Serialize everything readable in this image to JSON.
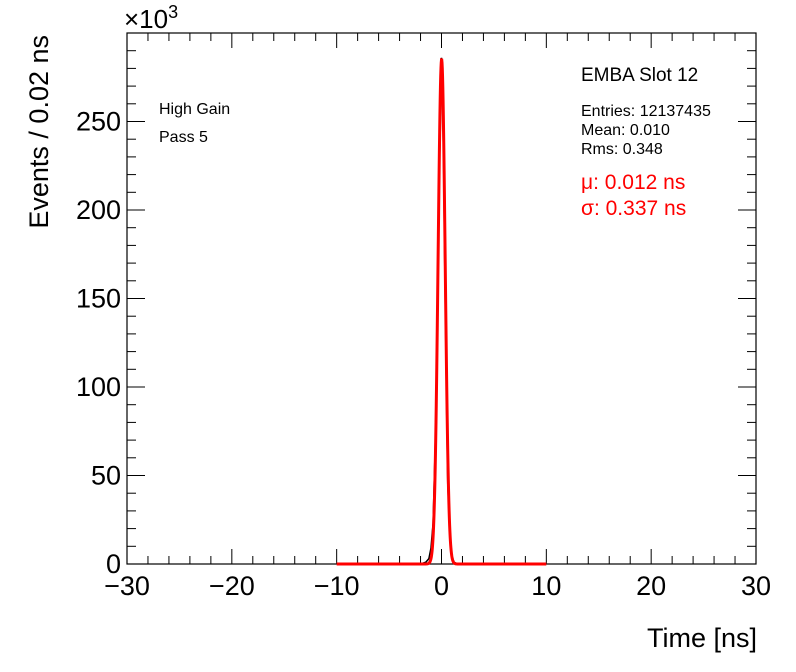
{
  "chart_data": {
    "type": "line",
    "title": "EMBA Slot 12",
    "xlabel": "Time [ns]",
    "ylabel": "Events / 0.02 ns",
    "y_multiplier": "×10",
    "y_multiplier_exp": "3",
    "xlim": [
      -30,
      30
    ],
    "ylim": [
      0,
      300
    ],
    "x_ticks": [
      -30,
      -20,
      -10,
      0,
      10,
      20,
      30
    ],
    "x_tick_labels": [
      "−30",
      "−20",
      "−10",
      "0",
      "10",
      "20",
      "30"
    ],
    "y_ticks": [
      0,
      50,
      100,
      150,
      200,
      250
    ],
    "y_tick_labels": [
      "0",
      "50",
      "100",
      "150",
      "200",
      "250"
    ],
    "grid": false,
    "annotations": {
      "gain": "High Gain",
      "pass": "Pass 5"
    },
    "stats": {
      "entries": "Entries: 12137435",
      "mean": "Mean: 0.010",
      "rms": "Rms: 0.348"
    },
    "fit_results": {
      "mu": "μ: 0.012 ns",
      "sigma": "σ: 0.337 ns"
    },
    "series": [
      {
        "kind": "histogram",
        "color": "#000000",
        "x": [
          -2.0,
          -1.5,
          -1.2,
          -1.0,
          -0.8,
          -0.6,
          -0.5,
          -0.4,
          -0.3,
          -0.2,
          -0.1,
          0.0,
          0.1,
          0.2,
          0.3,
          0.4,
          0.5,
          0.6,
          0.8,
          1.0,
          1.2,
          1.5,
          2.0
        ],
        "y": [
          0,
          1,
          3,
          9,
          23,
          66,
          94,
          145,
          190,
          225,
          250,
          286,
          260,
          230,
          175,
          130,
          85,
          45,
          18,
          4,
          1,
          0,
          0
        ]
      },
      {
        "kind": "gaussian-fit",
        "color": "#ff0000",
        "mu": 0.012,
        "sigma": 0.337,
        "amplitude": 285,
        "range": [
          -10,
          10
        ]
      }
    ]
  }
}
